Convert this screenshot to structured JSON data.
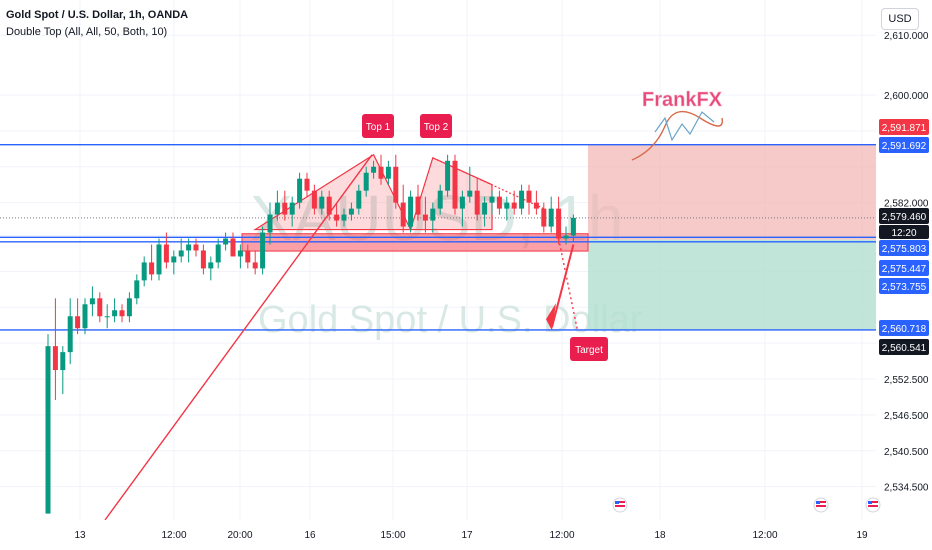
{
  "header": {
    "title": "Gold Spot / U.S. Dollar, 1h, OANDA",
    "indicator": "Double Top (All, All, 50, Both, 10)",
    "currency_button": "USD"
  },
  "watermark": {
    "symbol": "XAUUSD, 1h",
    "description": "Gold Spot / U.S. Dollar"
  },
  "brand": "FrankFX",
  "colors": {
    "up": "#089981",
    "down": "#f23645",
    "level_line": "#2962ff",
    "pattern_zone": "#f7525f",
    "target_box": "#b2dfd0",
    "stop_box": "#f2b8b5"
  },
  "chart_data": {
    "type": "candlestick",
    "symbol": "Gold Spot / U.S. Dollar",
    "interval": "1h",
    "source": "OANDA",
    "y_ticks": [
      2534.5,
      2540.5,
      2546.5,
      2552.5,
      2558.5,
      2564.5,
      2570.5,
      2576.5,
      2582.0,
      2588.0,
      2594.0,
      2600.0,
      2610.0
    ],
    "y_tick_labels": [
      "2,534.500",
      "2,540.500",
      "2,546.500",
      "2,552.500",
      "",
      "",
      "",
      "",
      "2,582.000",
      "",
      "",
      "2,600.000",
      "2,610.000"
    ],
    "x_tick_labels": [
      "13",
      "12:00",
      "20:00",
      "16",
      "15:00",
      "17",
      "12:00",
      "18",
      "12:00",
      "19"
    ],
    "price_labels": [
      {
        "text": "2,591.871",
        "value": 2591.871,
        "kind": "red"
      },
      {
        "text": "2,591.692",
        "value": 2591.692,
        "kind": "blue"
      },
      {
        "text": "2,579.460",
        "value": 2579.46,
        "kind": "dark"
      },
      {
        "text": "12:20",
        "value": 2579.46,
        "kind": "dark-sub"
      },
      {
        "text": "2,575.803",
        "value": 2575.803,
        "kind": "blue"
      },
      {
        "text": "2,575.447",
        "value": 2575.447,
        "kind": "blue"
      },
      {
        "text": "2,573.755",
        "value": 2573.755,
        "kind": "blue"
      },
      {
        "text": "2,560.718",
        "value": 2560.718,
        "kind": "blue"
      },
      {
        "text": "2,560.541",
        "value": 2560.541,
        "kind": "dark"
      }
    ],
    "levels": [
      2591.692,
      2576.2,
      2575.447,
      2560.718
    ],
    "annotations": [
      {
        "text": "Top 1",
        "kind": "pattern-label"
      },
      {
        "text": "Top 2",
        "kind": "pattern-label"
      },
      {
        "text": "Target",
        "kind": "target-label"
      }
    ],
    "candles": [
      [
        2530,
        2560,
        2530,
        2558
      ],
      [
        2558,
        2566,
        2549,
        2554
      ],
      [
        2554,
        2558,
        2550,
        2557
      ],
      [
        2557,
        2566,
        2555,
        2563
      ],
      [
        2563,
        2566,
        2560,
        2561
      ],
      [
        2561,
        2566,
        2560,
        2565
      ],
      [
        2565,
        2568,
        2563,
        2566
      ],
      [
        2566,
        2567,
        2562,
        2563
      ],
      [
        2563,
        2565,
        2561,
        2563
      ],
      [
        2563,
        2566,
        2562,
        2564
      ],
      [
        2564,
        2565,
        2562,
        2563
      ],
      [
        2563,
        2567,
        2562,
        2566
      ],
      [
        2566,
        2570,
        2565,
        2569
      ],
      [
        2569,
        2573,
        2568,
        2572
      ],
      [
        2572,
        2575,
        2569,
        2570
      ],
      [
        2570,
        2576,
        2569,
        2575
      ],
      [
        2575,
        2577,
        2571,
        2572
      ],
      [
        2572,
        2574,
        2570,
        2573
      ],
      [
        2573,
        2576,
        2572,
        2574
      ],
      [
        2574,
        2576,
        2572,
        2575
      ],
      [
        2575,
        2576,
        2573,
        2574
      ],
      [
        2574,
        2575,
        2570,
        2571
      ],
      [
        2571,
        2573,
        2569,
        2572
      ],
      [
        2572,
        2576,
        2571,
        2575
      ],
      [
        2575,
        2577,
        2574,
        2576
      ],
      [
        2576,
        2577,
        2573,
        2573
      ],
      [
        2573,
        2575,
        2571,
        2574
      ],
      [
        2574,
        2575,
        2571,
        2572
      ],
      [
        2572,
        2574,
        2570,
        2571
      ],
      [
        2571,
        2578,
        2570,
        2577
      ],
      [
        2577,
        2582,
        2575,
        2580
      ],
      [
        2580,
        2584,
        2579,
        2582
      ],
      [
        2582,
        2584,
        2579,
        2580
      ],
      [
        2580,
        2583,
        2578,
        2582
      ],
      [
        2582,
        2587,
        2581,
        2586
      ],
      [
        2586,
        2587,
        2583,
        2584
      ],
      [
        2584,
        2585,
        2580,
        2581
      ],
      [
        2581,
        2584,
        2580,
        2583
      ],
      [
        2583,
        2584,
        2579,
        2580
      ],
      [
        2580,
        2582,
        2578,
        2579
      ],
      [
        2579,
        2581,
        2578,
        2580
      ],
      [
        2580,
        2582,
        2579,
        2581
      ],
      [
        2581,
        2585,
        2580,
        2584
      ],
      [
        2584,
        2588,
        2583,
        2587
      ],
      [
        2587,
        2589,
        2586,
        2588
      ],
      [
        2588,
        2590,
        2585,
        2586
      ],
      [
        2586,
        2589,
        2585,
        2588
      ],
      [
        2588,
        2590,
        2581,
        2582
      ],
      [
        2582,
        2585,
        2577,
        2578
      ],
      [
        2578,
        2584,
        2577,
        2583
      ],
      [
        2583,
        2585,
        2579,
        2580
      ],
      [
        2580,
        2583,
        2577,
        2579
      ],
      [
        2579,
        2582,
        2577,
        2581
      ],
      [
        2581,
        2585,
        2580,
        2584
      ],
      [
        2584,
        2590,
        2583,
        2589
      ],
      [
        2589,
        2590,
        2580,
        2581
      ],
      [
        2581,
        2584,
        2578,
        2583
      ],
      [
        2583,
        2588,
        2582,
        2584
      ],
      [
        2584,
        2586,
        2579,
        2580
      ],
      [
        2580,
        2583,
        2578,
        2582
      ],
      [
        2582,
        2584,
        2580,
        2583
      ],
      [
        2583,
        2584,
        2580,
        2581
      ],
      [
        2581,
        2583,
        2579,
        2582
      ],
      [
        2582,
        2584,
        2580,
        2581
      ],
      [
        2581,
        2585,
        2580,
        2584
      ],
      [
        2584,
        2585,
        2580,
        2582
      ],
      [
        2582,
        2584,
        2580,
        2581
      ],
      [
        2581,
        2582,
        2577,
        2578
      ],
      [
        2578,
        2583,
        2577,
        2581
      ],
      [
        2581,
        2583,
        2575,
        2576
      ],
      [
        2576,
        2578,
        2575,
        2576.5
      ],
      [
        2576.5,
        2580,
        2575.5,
        2579.46
      ]
    ]
  }
}
